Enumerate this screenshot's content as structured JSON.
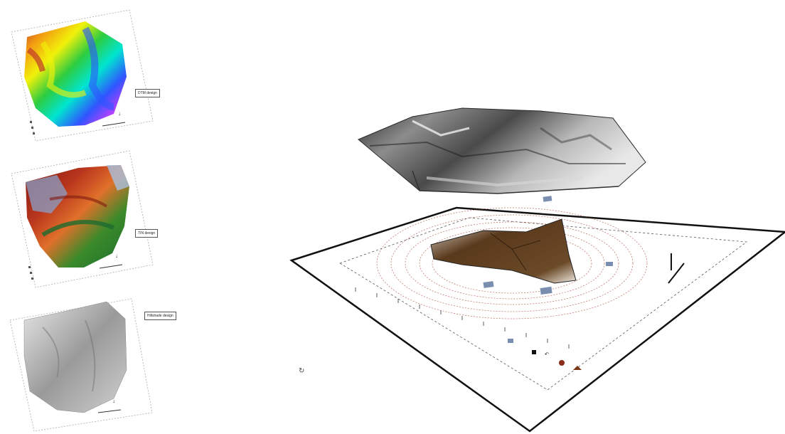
{
  "panels": [
    {
      "id": "dtm",
      "label": "DTM design"
    },
    {
      "id": "tin",
      "label": "TIN design"
    },
    {
      "id": "hillshade",
      "label": "Hillshade design"
    }
  ],
  "scene": {
    "surface": "3d-terrain-grayscale",
    "basemap": "site-plan-with-contours"
  },
  "colors": {
    "frame_border": "#000000",
    "contour_red": "#a03020",
    "terrain_dark": "#3d3d3d",
    "water_brown": "#5a3a1c"
  }
}
